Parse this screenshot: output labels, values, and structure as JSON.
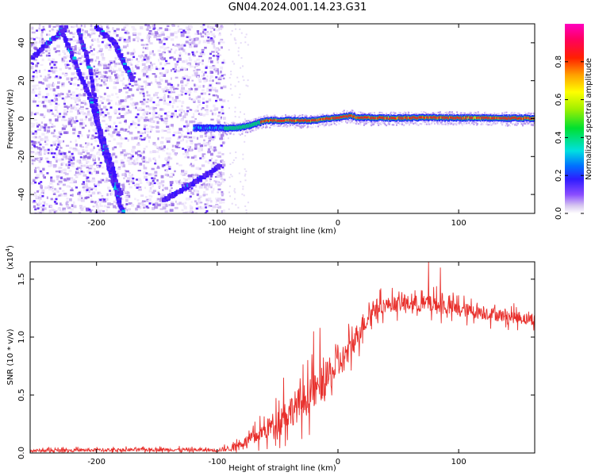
{
  "title": "GN04.2024.001.14.23.G31",
  "chart_data": [
    {
      "type": "heatmap",
      "xlabel": "Height of straight line (km)",
      "ylabel": "Frequency (Hz)",
      "xlim": [
        -255,
        163
      ],
      "ylim": [
        -50,
        50
      ],
      "xticks": [
        -200,
        -100,
        0,
        100
      ],
      "yticks": [
        -40,
        -20,
        0,
        20,
        40
      ],
      "colorbar": {
        "label": "Normalized spectral amplitude",
        "range": [
          0,
          1
        ],
        "ticks": [
          "0.0",
          "0.2",
          "0.4",
          "0.6",
          "0.8"
        ],
        "tick_values": [
          0,
          0.2,
          0.4,
          0.6,
          0.8
        ]
      },
      "noise_region_x": [
        -255,
        -95
      ],
      "main_track": [
        [
          -120,
          -5
        ],
        [
          -100,
          -5
        ],
        [
          -90,
          -5
        ],
        [
          -80,
          -4.5
        ],
        [
          -70,
          -3
        ],
        [
          -60,
          -1
        ],
        [
          -40,
          -1
        ],
        [
          -20,
          -1
        ],
        [
          -10,
          0
        ],
        [
          0,
          0.5
        ],
        [
          10,
          1.5
        ],
        [
          15,
          0.5
        ],
        [
          40,
          0.3
        ],
        [
          80,
          0.5
        ],
        [
          120,
          0.3
        ],
        [
          163,
          0.2
        ]
      ],
      "diagonal_tracks": [
        [
          [
            -253,
            32
          ],
          [
            -240,
            40
          ],
          [
            -225,
            48
          ]
        ],
        [
          [
            -215,
            47
          ],
          [
            -205,
            25
          ],
          [
            -197,
            -10
          ],
          [
            -188,
            -30
          ],
          [
            -178,
            -50
          ]
        ],
        [
          [
            -230,
            48
          ],
          [
            -218,
            30
          ],
          [
            -205,
            10
          ],
          [
            -198,
            -5
          ],
          [
            -190,
            -20
          ],
          [
            -180,
            -40
          ]
        ],
        [
          [
            -145,
            -43
          ],
          [
            -130,
            -38
          ],
          [
            -115,
            -32
          ],
          [
            -98,
            -25
          ]
        ],
        [
          [
            -200,
            48
          ],
          [
            -185,
            40
          ],
          [
            -178,
            30
          ],
          [
            -170,
            20
          ]
        ]
      ]
    },
    {
      "type": "line",
      "xlabel": "Height of straight line (km)",
      "ylabel": "SNR (10 * v/v)",
      "yscale_label": "(x10",
      "yscale_exp": "4",
      "yscale_close": ")",
      "xlim": [
        -255,
        163
      ],
      "ylim": [
        0,
        16500
      ],
      "xticks": [
        -200,
        -100,
        0,
        100
      ],
      "yticks": [
        0,
        5000,
        10000,
        15000
      ],
      "ytick_labels": [
        "0.0",
        "0.5",
        "1.0",
        "1.5"
      ],
      "series": [
        {
          "color": "#e8302c",
          "envelope": [
            [
              -255,
              200
            ],
            [
              -150,
              300
            ],
            [
              -100,
              250
            ],
            [
              -90,
              400
            ],
            [
              -80,
              800
            ],
            [
              -70,
              1300
            ],
            [
              -60,
              2000
            ],
            [
              -50,
              2800
            ],
            [
              -40,
              3600
            ],
            [
              -30,
              4400
            ],
            [
              -20,
              5200
            ],
            [
              -10,
              6300
            ],
            [
              0,
              7500
            ],
            [
              10,
              9000
            ],
            [
              20,
              11000
            ],
            [
              30,
              12500
            ],
            [
              40,
              12800
            ],
            [
              60,
              12900
            ],
            [
              80,
              12800
            ],
            [
              100,
              12400
            ],
            [
              120,
              12100
            ],
            [
              140,
              11800
            ],
            [
              163,
              11500
            ]
          ],
          "noise_amplitude": [
            [
              -255,
              200
            ],
            [
              -100,
              200
            ],
            [
              -80,
              500
            ],
            [
              -60,
              1200
            ],
            [
              -40,
              2000
            ],
            [
              -20,
              2200
            ],
            [
              0,
              1800
            ],
            [
              20,
              1400
            ],
            [
              40,
              900
            ],
            [
              80,
              1100
            ],
            [
              100,
              900
            ],
            [
              163,
              700
            ]
          ],
          "spikes": [
            [
              -45,
              6500
            ],
            [
              -20,
              10500
            ],
            [
              -15,
              10800
            ],
            [
              10,
              9500
            ],
            [
              75,
              16500
            ],
            [
              85,
              16000
            ],
            [
              130,
              12800
            ]
          ]
        }
      ]
    }
  ]
}
